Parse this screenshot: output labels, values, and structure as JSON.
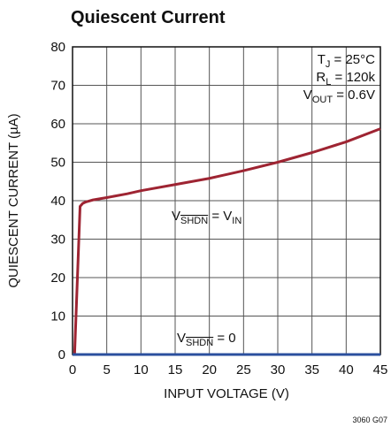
{
  "chart_data": {
    "type": "line",
    "title": "Quiescent Current",
    "xlabel": "INPUT VOLTAGE (V)",
    "ylabel": "QUIESCENT CURRENT (µA)",
    "series": [
      {
        "color": "#9e2432",
        "x": [
          0.3,
          1.1,
          1.5,
          2,
          3,
          5,
          8,
          10,
          15,
          20,
          25,
          30,
          35,
          40,
          45
        ],
        "values": [
          0,
          38.5,
          39.3,
          39.7,
          40.2,
          40.8,
          41.8,
          42.6,
          44.2,
          45.8,
          47.8,
          50.0,
          52.5,
          55.3,
          58.7
        ]
      },
      {
        "color": "#2b4f9e",
        "x": [
          0,
          45
        ],
        "values": [
          0,
          0
        ]
      }
    ],
    "xlim": [
      0,
      45
    ],
    "xticks": [
      0,
      5,
      10,
      15,
      20,
      25,
      30,
      35,
      40,
      45
    ],
    "ylim": [
      0,
      80
    ],
    "yticks": [
      0,
      10,
      20,
      30,
      40,
      50,
      60,
      70,
      80
    ],
    "grid": true,
    "annotations": [
      [
        "T",
        "J",
        " = 25°C"
      ],
      [
        "R",
        "L",
        " = 120k"
      ],
      [
        "V",
        "OUT",
        " = 0.6V"
      ],
      [
        "V",
        "SHDN",
        " = V",
        "IN"
      ],
      [
        "V",
        "SHDN",
        " = 0"
      ]
    ],
    "footnote": "3060 G07"
  }
}
